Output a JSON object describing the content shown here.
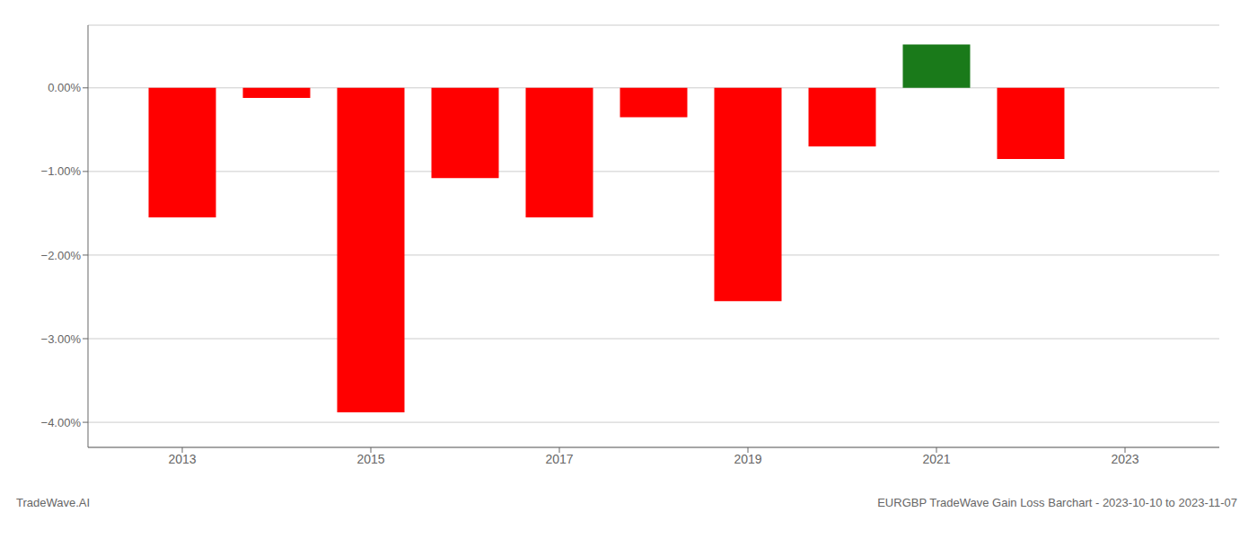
{
  "chart_data": {
    "type": "bar",
    "x": [
      2013,
      2014,
      2015,
      2016,
      2017,
      2018,
      2019,
      2020,
      2021,
      2022
    ],
    "values": [
      -1.55,
      -0.12,
      -3.88,
      -1.08,
      -1.55,
      -0.35,
      -2.55,
      -0.7,
      0.52,
      -0.85
    ],
    "colors": [
      "#ff0000",
      "#ff0000",
      "#ff0000",
      "#ff0000",
      "#ff0000",
      "#ff0000",
      "#ff0000",
      "#ff0000",
      "#1a7a1a",
      "#ff0000"
    ],
    "xlim": [
      2012.0,
      2024.0
    ],
    "xticks": [
      2013,
      2015,
      2017,
      2019,
      2021,
      2023
    ],
    "ylim": [
      -4.3,
      0.75
    ],
    "yticks": [
      {
        "value": 0.0,
        "label": "0.00%"
      },
      {
        "value": -1.0,
        "label": "−1.00%"
      },
      {
        "value": -2.0,
        "label": "−2.00%"
      },
      {
        "value": -3.0,
        "label": "−3.00%"
      },
      {
        "value": -4.0,
        "label": "−4.00%"
      }
    ],
    "grid": true,
    "annotations": [
      "TradeWave.AI",
      "EURGBP TradeWave Gain Loss Barchart - 2023-10-10 to 2023-11-07"
    ]
  }
}
